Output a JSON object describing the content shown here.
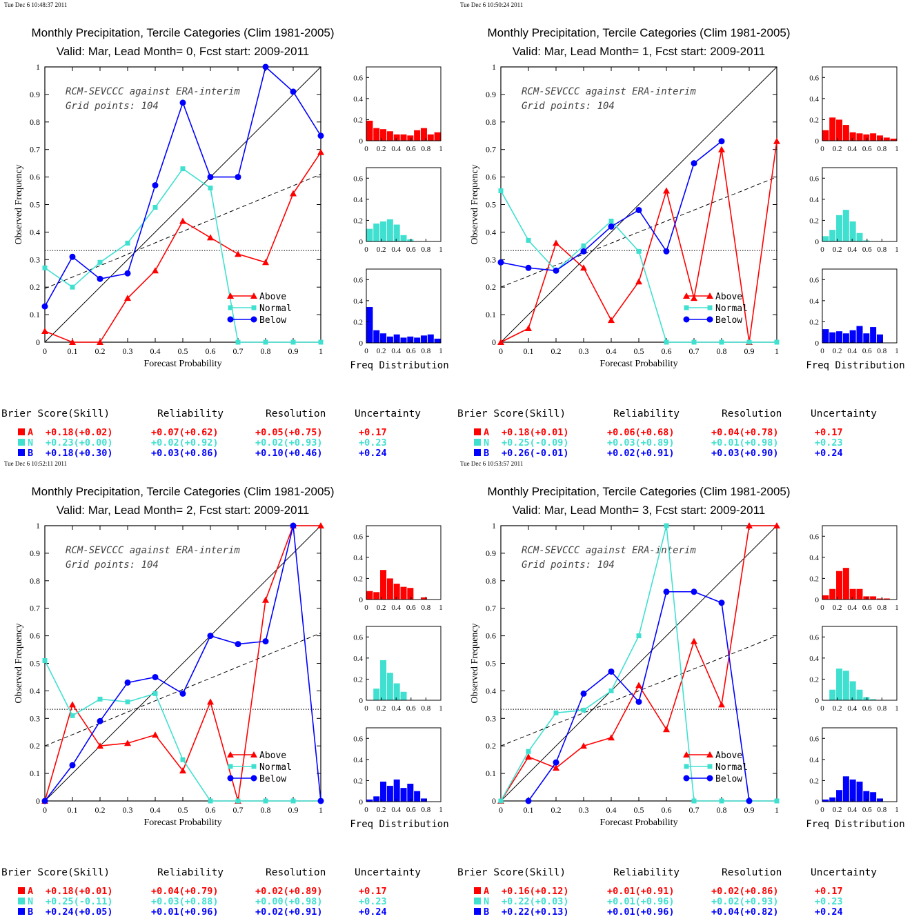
{
  "chart_data": [
    {
      "type": "line",
      "timestamp": "Tue Dec  6 10:48:37 2011",
      "title": "Monthly Precipitation, Tercile Categories (Clim 1981-2005)",
      "subtitle": "Valid: Mar, Lead Month= 0, Fcst start: 2009-2011",
      "annotation_1": "RCM-SEVCCC against ERA-interim",
      "annotation_2": "Grid points:  104",
      "xlabel": "Forecast Probability",
      "ylabel": "Observed Frequency",
      "xlim": [
        0,
        1
      ],
      "ylim": [
        0,
        1
      ],
      "x_ticks": [
        "0",
        "0.1",
        "0.2",
        "0.3",
        "0.4",
        "0.5",
        "0.6",
        "0.7",
        "0.8",
        "0.9",
        "1"
      ],
      "y_ticks": [
        "0",
        "0.1",
        "0.2",
        "0.3",
        "0.4",
        "0.5",
        "0.6",
        "0.7",
        "0.8",
        "0.9",
        "1"
      ],
      "x": [
        0,
        0.1,
        0.2,
        0.3,
        0.4,
        0.5,
        0.6,
        0.7,
        0.8,
        0.9,
        1.0
      ],
      "series": [
        {
          "name": "Above",
          "color": "#ff0000",
          "marker": "triangle",
          "values": [
            0.04,
            0.0,
            0.0,
            0.16,
            0.26,
            0.44,
            0.38,
            0.32,
            0.29,
            0.54,
            0.69
          ]
        },
        {
          "name": "Normal",
          "color": "#40e0d0",
          "marker": "square",
          "values": [
            0.27,
            0.2,
            0.29,
            0.36,
            0.49,
            0.63,
            0.56,
            0.0,
            0.0,
            0.0,
            0.0
          ]
        },
        {
          "name": "Below",
          "color": "#0000ff",
          "marker": "circle",
          "values": [
            0.13,
            0.31,
            0.23,
            0.25,
            0.57,
            0.87,
            0.6,
            0.6,
            1.0,
            0.91,
            0.75
          ]
        }
      ],
      "reference_lines": {
        "perfect": [
          [
            0,
            0
          ],
          [
            1,
            1
          ]
        ],
        "skill": [
          [
            0,
            0.195
          ],
          [
            1,
            0.61
          ]
        ],
        "climatology": 0.333
      },
      "freq_label": "Freq Distribution",
      "freq_ylim": [
        0,
        0.7
      ],
      "freq_x_ticks": [
        "0",
        "0.2",
        "0.4",
        "0.6",
        "0.8",
        "1"
      ],
      "freq_y_ticks": [
        "0",
        "0.2",
        "0.4",
        "0.6"
      ],
      "freq": [
        [
          0.19,
          0.12,
          0.11,
          0.09,
          0.06,
          0.06,
          0.05,
          0.1,
          0.12,
          0.06,
          0.08
        ],
        [
          0.12,
          0.17,
          0.19,
          0.21,
          0.16,
          0.06,
          0.02,
          0.0,
          0.0,
          0.0,
          0.0
        ],
        [
          0.34,
          0.12,
          0.09,
          0.06,
          0.08,
          0.05,
          0.06,
          0.05,
          0.07,
          0.08,
          0.04
        ]
      ],
      "scores_header": [
        "Brier Score(Skill)",
        "Reliability",
        "Resolution",
        "Uncertainty"
      ],
      "scores": [
        {
          "code": "A",
          "brier": "+0.18(+0.02)",
          "reliability": "+0.07(+0.62)",
          "resolution": "+0.05(+0.75)",
          "uncertainty": "+0.17"
        },
        {
          "code": "N",
          "brier": "+0.23(+0.00)",
          "reliability": "+0.02(+0.92)",
          "resolution": "+0.02(+0.93)",
          "uncertainty": "+0.23"
        },
        {
          "code": "B",
          "brier": "+0.18(+0.30)",
          "reliability": "+0.03(+0.86)",
          "resolution": "+0.10(+0.46)",
          "uncertainty": "+0.24"
        }
      ]
    },
    {
      "type": "line",
      "timestamp": "Tue Dec  6 10:50:24 2011",
      "title": "Monthly Precipitation, Tercile Categories (Clim 1981-2005)",
      "subtitle": "Valid: Mar, Lead Month= 1, Fcst start: 2009-2011",
      "annotation_1": "RCM-SEVCCC against ERA-interim",
      "annotation_2": "Grid points:  104",
      "xlabel": "Forecast Probability",
      "ylabel": "Observed Frequency",
      "xlim": [
        0,
        1
      ],
      "ylim": [
        0,
        1
      ],
      "x_ticks": [
        "0",
        "0.1",
        "0.2",
        "0.3",
        "0.4",
        "0.5",
        "0.6",
        "0.7",
        "0.8",
        "0.9",
        "1"
      ],
      "y_ticks": [
        "0",
        "0.1",
        "0.2",
        "0.3",
        "0.4",
        "0.5",
        "0.6",
        "0.7",
        "0.8",
        "0.9",
        "1"
      ],
      "x": [
        0,
        0.1,
        0.2,
        0.3,
        0.4,
        0.5,
        0.6,
        0.7,
        0.8,
        0.9,
        1.0
      ],
      "series": [
        {
          "name": "Above",
          "color": "#ff0000",
          "marker": "triangle",
          "values": [
            0.0,
            0.05,
            0.36,
            0.27,
            0.08,
            0.22,
            0.55,
            0.16,
            0.7,
            0.0,
            0.73
          ]
        },
        {
          "name": "Normal",
          "color": "#40e0d0",
          "marker": "square",
          "values": [
            0.55,
            0.37,
            0.26,
            0.35,
            0.44,
            0.33,
            0.0,
            0.0,
            0.0,
            0.0,
            0.0
          ]
        },
        {
          "name": "Below",
          "color": "#0000ff",
          "marker": "circle",
          "values": [
            0.29,
            0.27,
            0.26,
            0.33,
            0.42,
            0.48,
            0.33,
            0.65,
            0.73,
            null,
            null
          ]
        }
      ],
      "reference_lines": {
        "perfect": [
          [
            0,
            0
          ],
          [
            1,
            1
          ]
        ],
        "skill": [
          [
            0,
            0.2
          ],
          [
            1,
            0.6
          ]
        ],
        "climatology": 0.333
      },
      "freq_label": "Freq Distribution",
      "freq_ylim": [
        0,
        0.7
      ],
      "freq_x_ticks": [
        "0",
        "0.2",
        "0.4",
        "0.6",
        "0.8",
        "1"
      ],
      "freq_y_ticks": [
        "0",
        "0.2",
        "0.4",
        "0.6"
      ],
      "freq": [
        [
          0.1,
          0.22,
          0.2,
          0.15,
          0.08,
          0.07,
          0.06,
          0.07,
          0.05,
          0.03,
          0.02
        ],
        [
          0.05,
          0.11,
          0.25,
          0.3,
          0.19,
          0.08,
          0.01,
          0.0,
          0.0,
          0.0,
          0.0
        ],
        [
          0.13,
          0.1,
          0.11,
          0.09,
          0.12,
          0.16,
          0.09,
          0.15,
          0.08,
          0.0,
          0.0
        ]
      ],
      "scores_header": [
        "Brier Score(Skill)",
        "Reliability",
        "Resolution",
        "Uncertainty"
      ],
      "scores": [
        {
          "code": "A",
          "brier": "+0.18(+0.01)",
          "reliability": "+0.06(+0.68)",
          "resolution": "+0.04(+0.78)",
          "uncertainty": "+0.17"
        },
        {
          "code": "N",
          "brier": "+0.25(-0.09)",
          "reliability": "+0.03(+0.89)",
          "resolution": "+0.01(+0.98)",
          "uncertainty": "+0.23"
        },
        {
          "code": "B",
          "brier": "+0.26(-0.01)",
          "reliability": "+0.02(+0.91)",
          "resolution": "+0.03(+0.90)",
          "uncertainty": "+0.24"
        }
      ]
    },
    {
      "type": "line",
      "timestamp": "Tue Dec  6 10:52:11 2011",
      "title": "Monthly Precipitation, Tercile Categories (Clim 1981-2005)",
      "subtitle": "Valid: Mar, Lead Month= 2, Fcst start: 2009-2011",
      "annotation_1": "RCM-SEVCCC against ERA-interim",
      "annotation_2": "Grid points:  104",
      "xlabel": "Forecast Probability",
      "ylabel": "Observed Frequency",
      "xlim": [
        0,
        1
      ],
      "ylim": [
        0,
        1
      ],
      "x_ticks": [
        "0",
        "0.1",
        "0.2",
        "0.3",
        "0.4",
        "0.5",
        "0.6",
        "0.7",
        "0.8",
        "0.9",
        "1"
      ],
      "y_ticks": [
        "0",
        "0.1",
        "0.2",
        "0.3",
        "0.4",
        "0.5",
        "0.6",
        "0.7",
        "0.8",
        "0.9",
        "1"
      ],
      "x": [
        0,
        0.1,
        0.2,
        0.3,
        0.4,
        0.5,
        0.6,
        0.7,
        0.8,
        0.9,
        1.0
      ],
      "series": [
        {
          "name": "Above",
          "color": "#ff0000",
          "marker": "triangle",
          "values": [
            0.0,
            0.35,
            0.2,
            0.21,
            0.24,
            0.11,
            0.36,
            0.0,
            0.73,
            1.0,
            1.0
          ]
        },
        {
          "name": "Normal",
          "color": "#40e0d0",
          "marker": "square",
          "values": [
            0.51,
            0.31,
            0.37,
            0.36,
            0.39,
            0.15,
            0.0,
            0.0,
            0.0,
            0.0,
            0.0
          ]
        },
        {
          "name": "Below",
          "color": "#0000ff",
          "marker": "circle",
          "values": [
            0.0,
            0.13,
            0.29,
            0.43,
            0.45,
            0.39,
            0.6,
            0.57,
            0.58,
            1.0,
            0.0
          ]
        }
      ],
      "reference_lines": {
        "perfect": [
          [
            0,
            0
          ],
          [
            1,
            1
          ]
        ],
        "skill": [
          [
            0,
            0.2
          ],
          [
            1,
            0.61
          ]
        ],
        "climatology": 0.333
      },
      "freq_label": "Freq Distribution",
      "freq_ylim": [
        0,
        0.7
      ],
      "freq_x_ticks": [
        "0",
        "0.2",
        "0.4",
        "0.6",
        "0.8",
        "1"
      ],
      "freq_y_ticks": [
        "0",
        "0.2",
        "0.4",
        "0.6"
      ],
      "freq": [
        [
          0.08,
          0.07,
          0.28,
          0.2,
          0.15,
          0.12,
          0.11,
          0.0,
          0.02,
          0.0,
          0.0
        ],
        [
          0.0,
          0.11,
          0.38,
          0.26,
          0.16,
          0.08,
          0.0,
          0.0,
          0.0,
          0.0,
          0.0
        ],
        [
          0.02,
          0.05,
          0.19,
          0.15,
          0.21,
          0.13,
          0.17,
          0.1,
          0.03,
          0.0,
          0.0
        ]
      ],
      "scores_header": [
        "Brier Score(Skill)",
        "Reliability",
        "Resolution",
        "Uncertainty"
      ],
      "scores": [
        {
          "code": "A",
          "brier": "+0.18(+0.01)",
          "reliability": "+0.04(+0.79)",
          "resolution": "+0.02(+0.89)",
          "uncertainty": "+0.17"
        },
        {
          "code": "N",
          "brier": "+0.25(-0.11)",
          "reliability": "+0.03(+0.88)",
          "resolution": "+0.00(+0.98)",
          "uncertainty": "+0.23"
        },
        {
          "code": "B",
          "brier": "+0.24(+0.05)",
          "reliability": "+0.01(+0.96)",
          "resolution": "+0.02(+0.91)",
          "uncertainty": "+0.24"
        }
      ]
    },
    {
      "type": "line",
      "timestamp": "Tue Dec  6 10:53:57 2011",
      "title": "Monthly Precipitation, Tercile Categories (Clim 1981-2005)",
      "subtitle": "Valid: Mar, Lead Month= 3, Fcst start: 2009-2011",
      "annotation_1": "RCM-SEVCCC against ERA-interim",
      "annotation_2": "Grid points:  104",
      "xlabel": "Forecast Probability",
      "ylabel": "Observed Frequency",
      "xlim": [
        0,
        1
      ],
      "ylim": [
        0,
        1
      ],
      "x_ticks": [
        "0",
        "0.1",
        "0.2",
        "0.3",
        "0.4",
        "0.5",
        "0.6",
        "0.7",
        "0.8",
        "0.9",
        "1"
      ],
      "y_ticks": [
        "0",
        "0.1",
        "0.2",
        "0.3",
        "0.4",
        "0.5",
        "0.6",
        "0.7",
        "0.8",
        "0.9",
        "1"
      ],
      "x": [
        0,
        0.1,
        0.2,
        0.3,
        0.4,
        0.5,
        0.6,
        0.7,
        0.8,
        0.9,
        1.0
      ],
      "series": [
        {
          "name": "Above",
          "color": "#ff0000",
          "marker": "triangle",
          "values": [
            0.0,
            0.16,
            0.12,
            0.2,
            0.23,
            0.42,
            0.26,
            0.58,
            0.35,
            1.0,
            1.0
          ]
        },
        {
          "name": "Normal",
          "color": "#40e0d0",
          "marker": "square",
          "values": [
            0.0,
            0.18,
            0.32,
            0.33,
            0.4,
            0.6,
            1.0,
            0.0,
            0.0,
            0.0,
            0.0
          ]
        },
        {
          "name": "Below",
          "color": "#0000ff",
          "marker": "circle",
          "values": [
            null,
            0.0,
            0.14,
            0.39,
            0.47,
            0.36,
            0.76,
            0.76,
            0.72,
            0.0,
            null
          ]
        }
      ],
      "reference_lines": {
        "perfect": [
          [
            0,
            0
          ],
          [
            1,
            1
          ]
        ],
        "skill": [
          [
            0,
            0.2
          ],
          [
            1,
            0.6
          ]
        ],
        "climatology": 0.333
      },
      "freq_label": "Freq Distribution",
      "freq_ylim": [
        0,
        0.7
      ],
      "freq_x_ticks": [
        "0",
        "0.2",
        "0.4",
        "0.6",
        "0.8",
        "1"
      ],
      "freq_y_ticks": [
        "0",
        "0.2",
        "0.4",
        "0.6"
      ],
      "freq": [
        [
          0.04,
          0.1,
          0.27,
          0.3,
          0.1,
          0.1,
          0.03,
          0.03,
          0.01,
          0.01,
          0.0
        ],
        [
          0.0,
          0.1,
          0.3,
          0.28,
          0.18,
          0.1,
          0.03,
          0.01,
          0.0,
          0.0,
          0.0
        ],
        [
          0.02,
          0.04,
          0.11,
          0.24,
          0.21,
          0.19,
          0.1,
          0.09,
          0.03,
          0.0,
          0.0
        ]
      ],
      "scores_header": [
        "Brier Score(Skill)",
        "Reliability",
        "Resolution",
        "Uncertainty"
      ],
      "scores": [
        {
          "code": "A",
          "brier": "+0.16(+0.12)",
          "reliability": "+0.01(+0.91)",
          "resolution": "+0.02(+0.86)",
          "uncertainty": "+0.17"
        },
        {
          "code": "N",
          "brier": "+0.22(+0.03)",
          "reliability": "+0.01(+0.96)",
          "resolution": "+0.02(+0.93)",
          "uncertainty": "+0.23"
        },
        {
          "code": "B",
          "brier": "+0.22(+0.13)",
          "reliability": "+0.01(+0.96)",
          "resolution": "+0.04(+0.82)",
          "uncertainty": "+0.24"
        }
      ]
    }
  ]
}
